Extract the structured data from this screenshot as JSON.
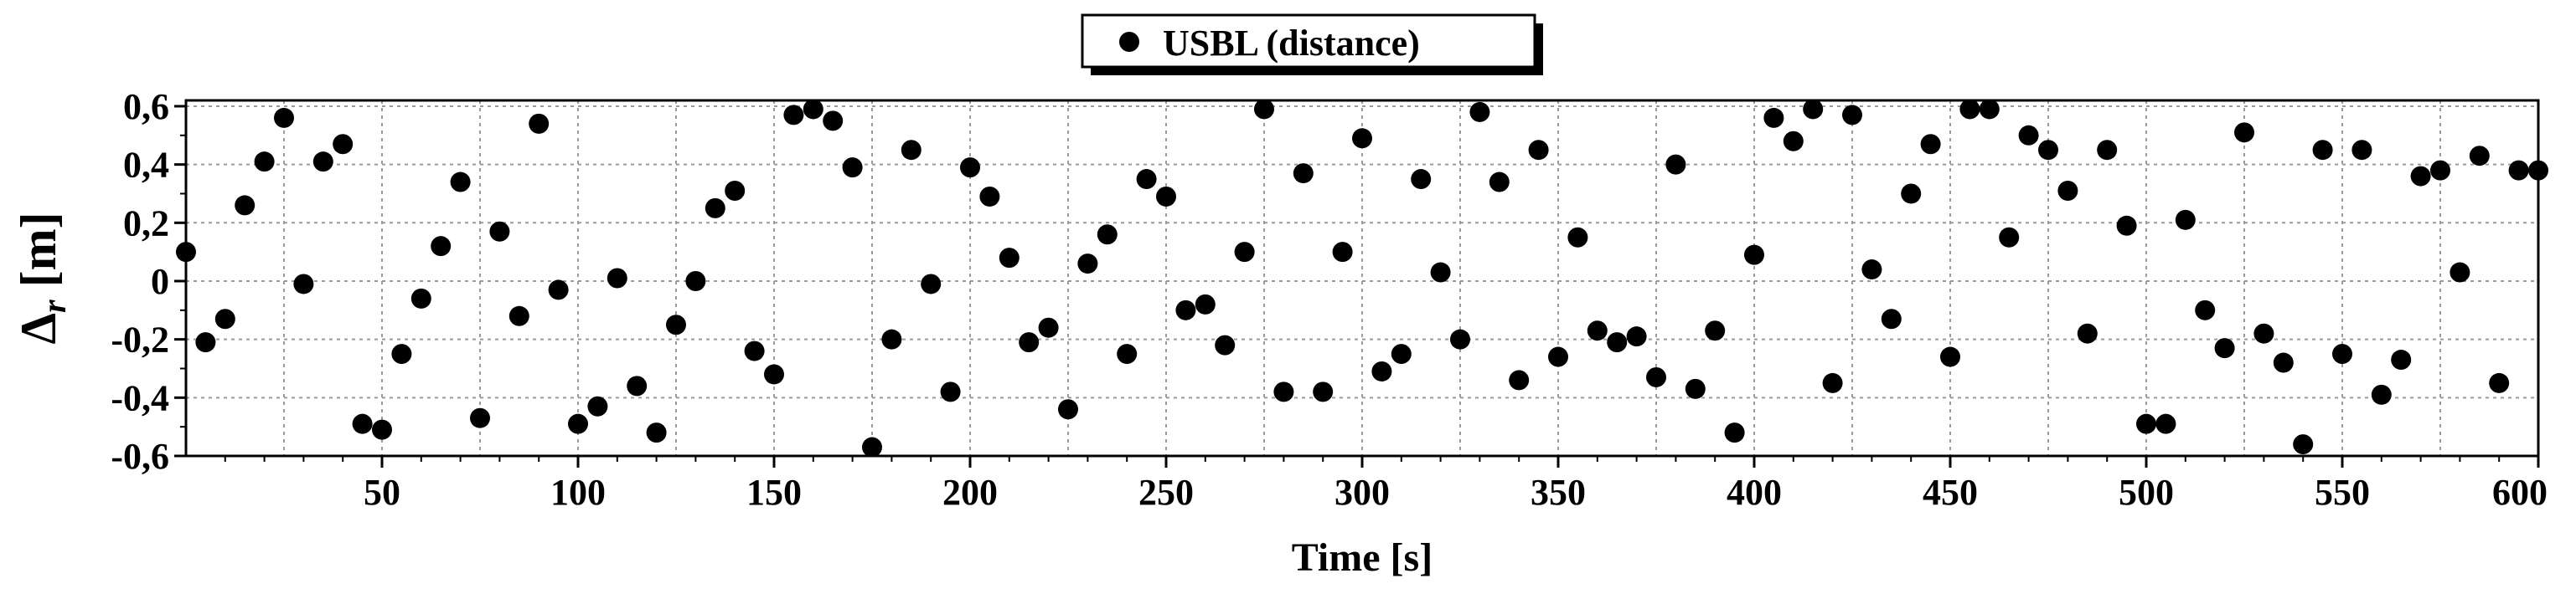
{
  "chart_data": {
    "type": "scatter",
    "xlabel": "Time [s]",
    "ylabel_main": "Δ",
    "ylabel_sub": "r",
    "ylabel_unit": " [m]",
    "xlim": [
      0,
      600
    ],
    "ylim": [
      -0.6,
      0.62
    ],
    "x_ticks": [
      50,
      100,
      150,
      200,
      250,
      300,
      350,
      400,
      450,
      500,
      550,
      600
    ],
    "x_tick_labels": [
      "50",
      "100",
      "150",
      "200",
      "250",
      "300",
      "350",
      "400",
      "450",
      "500",
      "550",
      "600"
    ],
    "y_ticks": [
      -0.6,
      -0.4,
      -0.2,
      0,
      0.2,
      0.4,
      0.6
    ],
    "y_tick_labels": [
      "-0,6",
      "-0,4",
      "-0,2",
      "0",
      "0,2",
      "0,4",
      "0,6"
    ],
    "grid": true,
    "legend_position": "top-center",
    "series": [
      {
        "name": "USBL (distance)",
        "marker": "filled-circle",
        "color": "#000000",
        "x": [
          0,
          5,
          10,
          15,
          20,
          25,
          30,
          35,
          40,
          45,
          50,
          55,
          60,
          65,
          70,
          75,
          80,
          85,
          90,
          95,
          100,
          105,
          110,
          115,
          120,
          125,
          130,
          135,
          140,
          145,
          150,
          155,
          160,
          165,
          170,
          175,
          180,
          185,
          190,
          195,
          200,
          205,
          210,
          215,
          220,
          225,
          230,
          235,
          240,
          245,
          250,
          255,
          260,
          265,
          270,
          275,
          280,
          285,
          290,
          295,
          300,
          305,
          310,
          315,
          320,
          325,
          330,
          335,
          340,
          345,
          350,
          355,
          360,
          365,
          370,
          375,
          380,
          385,
          390,
          395,
          400,
          405,
          410,
          415,
          420,
          425,
          430,
          435,
          440,
          445,
          450,
          455,
          460,
          465,
          470,
          475,
          480,
          485,
          490,
          495,
          500,
          505,
          510,
          515,
          520,
          525,
          530,
          535,
          540,
          545,
          550,
          555,
          560,
          565,
          570,
          575,
          580,
          585,
          590,
          595,
          600
        ],
        "y": [
          0.1,
          -0.21,
          -0.13,
          0.26,
          0.41,
          0.56,
          -0.01,
          0.41,
          0.47,
          -0.49,
          -0.51,
          -0.25,
          -0.06,
          0.12,
          0.34,
          -0.47,
          0.17,
          -0.12,
          0.54,
          -0.03,
          -0.49,
          -0.43,
          0.01,
          -0.36,
          -0.52,
          -0.15,
          0.0,
          0.25,
          0.31,
          -0.24,
          -0.32,
          0.57,
          0.59,
          0.55,
          0.39,
          -0.57,
          -0.2,
          0.45,
          -0.01,
          -0.38,
          0.39,
          0.29,
          0.08,
          -0.21,
          -0.16,
          -0.44,
          0.06,
          0.16,
          -0.25,
          0.35,
          0.29,
          -0.1,
          -0.08,
          -0.22,
          0.1,
          0.59,
          -0.38,
          0.37,
          -0.38,
          0.1,
          0.49,
          -0.31,
          -0.25,
          0.35,
          0.03,
          -0.2,
          0.58,
          0.34,
          -0.34,
          0.45,
          -0.26,
          0.15,
          -0.17,
          -0.21,
          -0.19,
          -0.33,
          0.4,
          -0.37,
          -0.17,
          -0.52,
          0.09,
          0.56,
          0.48,
          0.59,
          -0.35,
          0.57,
          0.04,
          -0.13,
          0.3,
          0.47,
          -0.26,
          0.59,
          0.59,
          0.15,
          0.5,
          0.45,
          0.31,
          -0.18,
          0.45,
          0.19,
          -0.49,
          -0.49,
          0.21,
          -0.1,
          -0.23,
          0.51,
          -0.18,
          -0.28,
          -0.56,
          0.45,
          -0.25,
          0.45,
          -0.39,
          -0.27,
          0.36,
          0.38,
          0.03,
          0.43,
          -0.35,
          0.38,
          0.38
        ]
      }
    ]
  }
}
